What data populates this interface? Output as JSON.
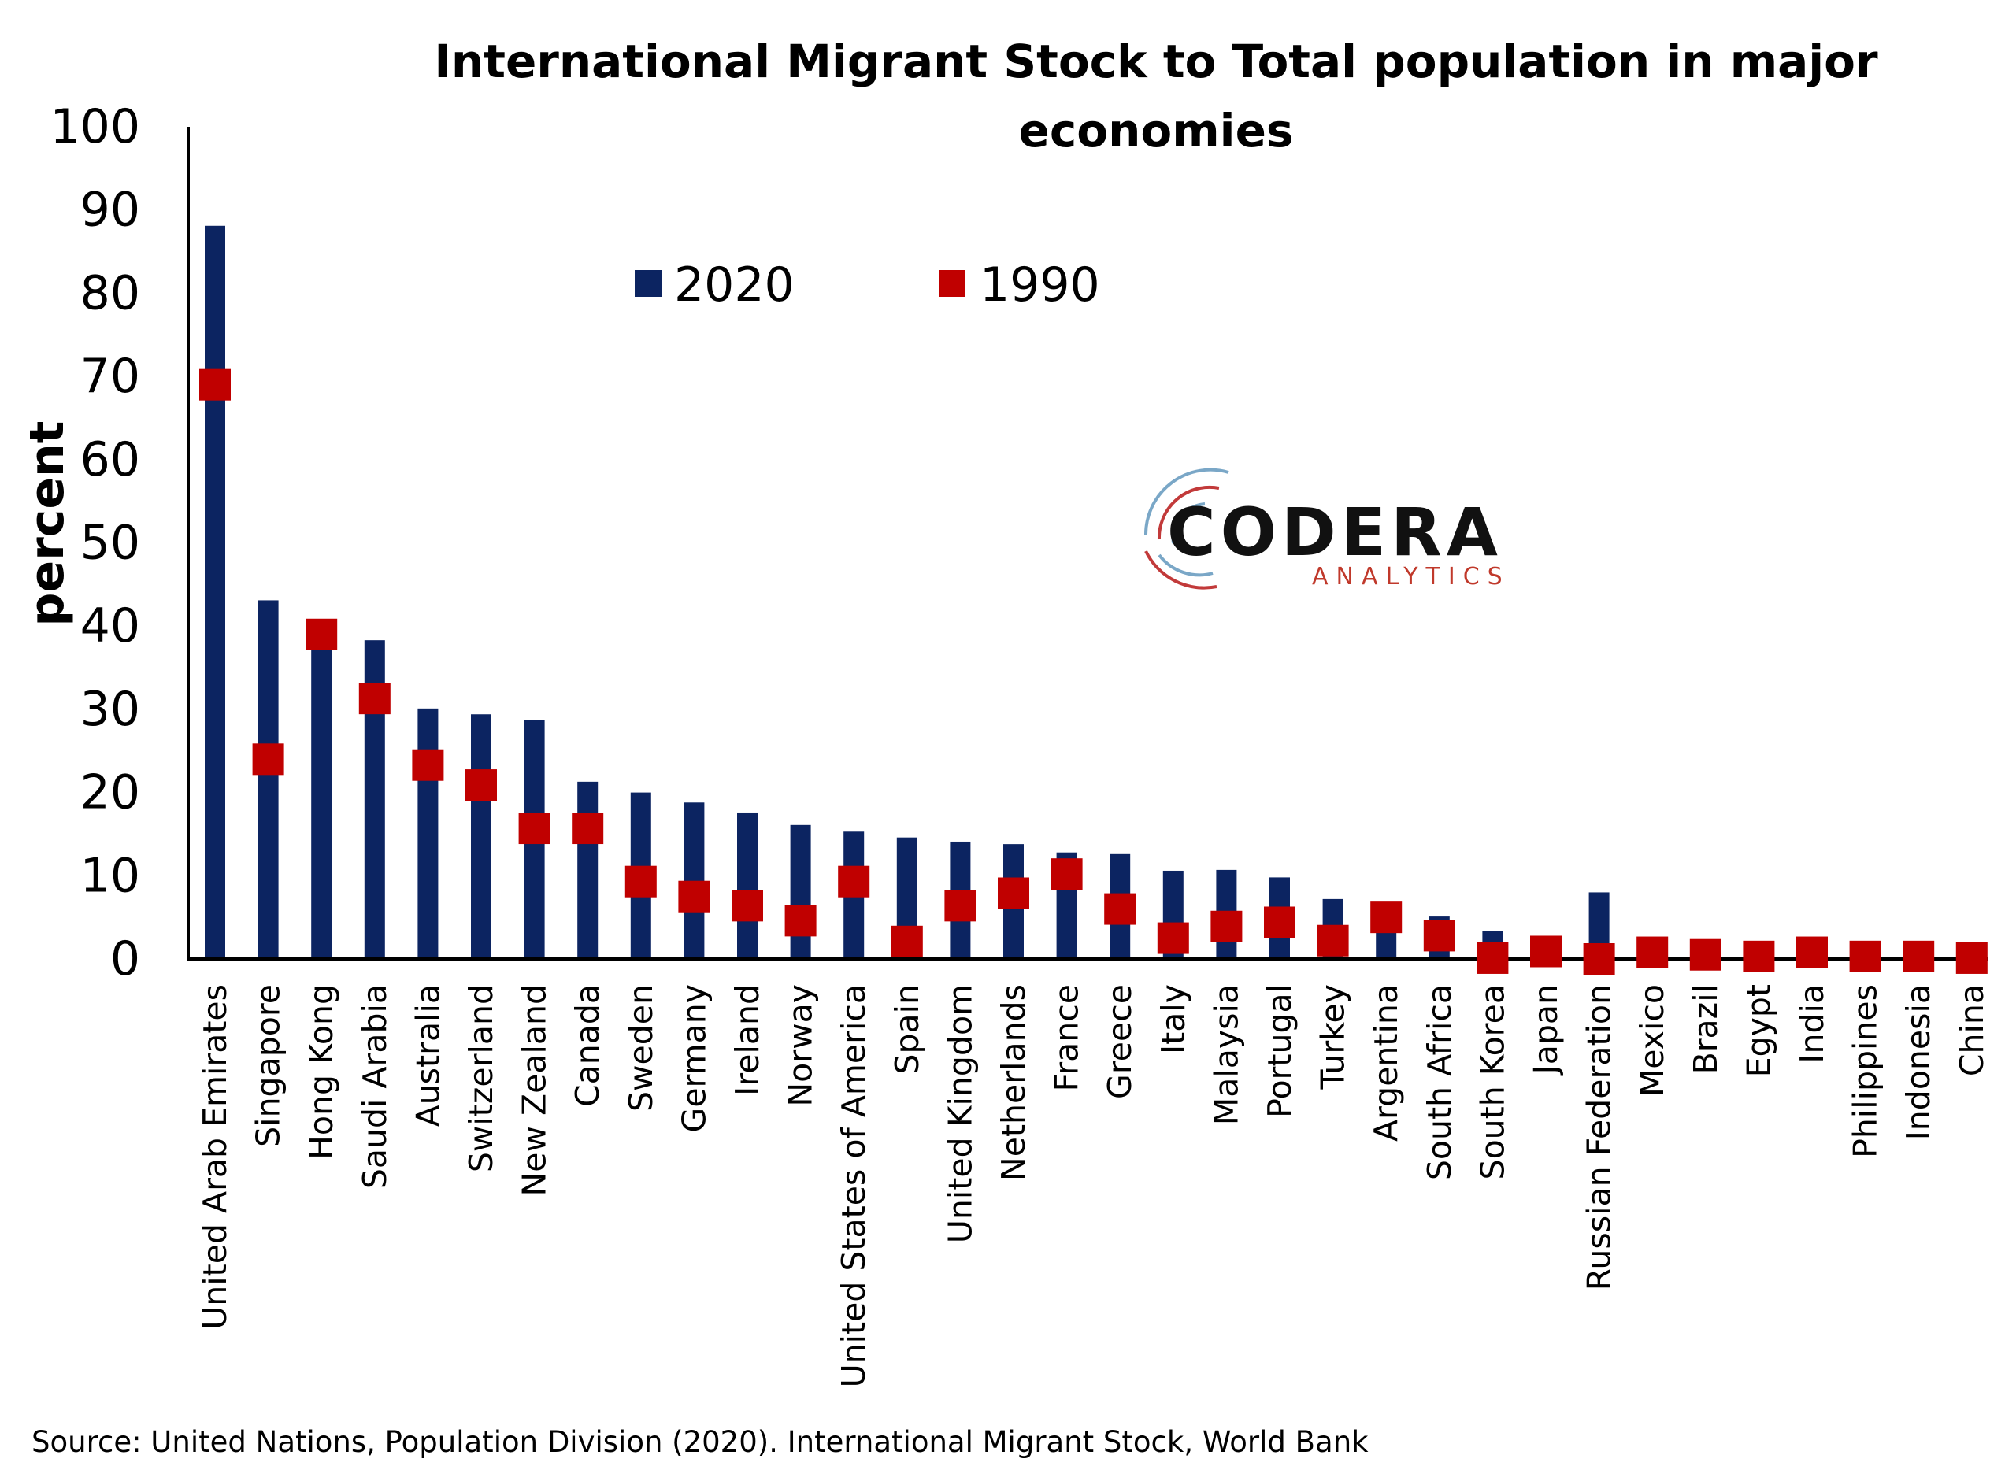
{
  "chart_data": {
    "type": "bar",
    "title_lines": [
      "International Migrant Stock to Total population in major",
      "economies"
    ],
    "ylabel": "percent",
    "ylim": [
      0,
      100
    ],
    "yticks": [
      "0",
      "10",
      "20",
      "30",
      "40",
      "50",
      "60",
      "70",
      "80",
      "90",
      "100"
    ],
    "legend_placement": "top-center",
    "categories": [
      "United Arab Emirates",
      "Singapore",
      "Hong Kong",
      "Saudi Arabia",
      "Australia",
      "Switzerland",
      "New Zealand",
      "Canada",
      "Sweden",
      "Germany",
      "Ireland",
      "Norway",
      "United States of America",
      "Spain",
      "United Kingdom",
      "Netherlands",
      "France",
      "Greece",
      "Italy",
      "Malaysia",
      "Portugal",
      "Turkey",
      "Argentina",
      "South Africa",
      "South Korea",
      "Japan",
      "Russian Federation",
      "Mexico",
      "Brazil",
      "Egypt",
      "India",
      "Philippines",
      "Indonesia",
      "China"
    ],
    "series": [
      {
        "name": "2020",
        "kind": "bar",
        "color": "#0c2461",
        "values": [
          88.1,
          43.1,
          39.5,
          38.3,
          30.1,
          29.4,
          28.7,
          21.3,
          20.0,
          18.8,
          17.6,
          16.1,
          15.3,
          14.6,
          14.1,
          13.8,
          12.8,
          12.6,
          10.6,
          10.7,
          9.8,
          7.2,
          4.8,
          5.1,
          3.4,
          2.2,
          8.0,
          0.9,
          0.5,
          0.5,
          0.4,
          0.2,
          0.1,
          0.1
        ]
      },
      {
        "name": "1990",
        "kind": "marker",
        "color": "#c00000",
        "values": [
          69.0,
          24.0,
          39.0,
          31.3,
          23.3,
          20.9,
          15.7,
          15.7,
          9.3,
          7.5,
          6.4,
          4.6,
          9.3,
          2.1,
          6.4,
          7.9,
          10.2,
          6.0,
          2.5,
          3.9,
          4.4,
          2.2,
          5.0,
          2.8,
          0.1,
          0.9,
          0.0,
          0.8,
          0.5,
          0.3,
          0.8,
          0.3,
          0.3,
          0.1
        ]
      }
    ]
  },
  "logo": {
    "main": "CODERA",
    "sub": "ANALYTICS"
  },
  "source": "Source: United Nations, Population Division (2020). International Migrant Stock, World Bank"
}
